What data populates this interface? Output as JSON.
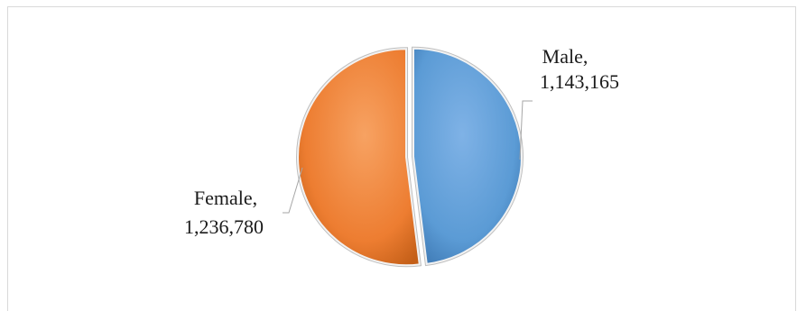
{
  "chart_data": {
    "type": "pie",
    "title": "",
    "slices": [
      {
        "label": "Male",
        "value": 1143165,
        "value_text": "1,143,165",
        "color": "#5b9bd5"
      },
      {
        "label": "Female",
        "value": 1236780,
        "value_text": "1,236,780",
        "color": "#ed7d31"
      }
    ],
    "legend": false,
    "data_labels": [
      "Male,",
      "1,143,165",
      "Female,",
      "1,236,780"
    ]
  }
}
